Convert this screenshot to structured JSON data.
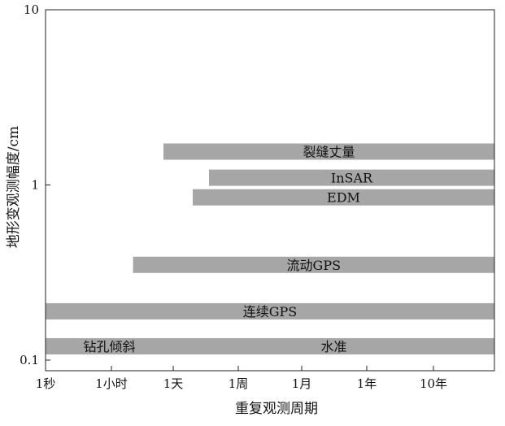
{
  "chart_data": {
    "type": "bar",
    "orientation": "horizontal-range",
    "xlabel": "重复观测周期",
    "ylabel": "地形变观测幅度/cm",
    "x_scale": "log",
    "y_scale": "log",
    "x_ticks": [
      "1秒",
      "1小时",
      "1天",
      "1周",
      "1月",
      "1年",
      "10年"
    ],
    "y_ticks": [
      "0.1",
      "1",
      "10"
    ],
    "ylim": [
      0.1,
      10
    ],
    "grid": false,
    "bar_color": "#a6a6a6",
    "series": [
      {
        "label": "裂缝丈量",
        "value": 1.55,
        "x_start": "1天",
        "x_start_offset": -0.15,
        "x_end": "right-edge"
      },
      {
        "label": "InSAR",
        "value": 1.1,
        "x_start": "1天",
        "x_start_offset": 0.55,
        "x_end": "right-edge"
      },
      {
        "label": "EDM",
        "value": 0.85,
        "x_start": "1天",
        "x_start_offset": 0.3,
        "x_end": "right-edge"
      },
      {
        "label": "流动GPS",
        "value": 0.35,
        "x_start": "1小时",
        "x_start_offset": 0.35,
        "x_end": "right-edge"
      },
      {
        "label": "连续GPS",
        "value": 0.19,
        "x_start": "left-edge",
        "x_end": "right-edge"
      },
      {
        "label": "钻孔倾斜",
        "value": 0.12,
        "x_start": "left-edge",
        "x_end": "1天",
        "label_only": false
      },
      {
        "label": "水准",
        "value": 0.12,
        "x_start": "1天",
        "x_end": "right-edge"
      }
    ]
  }
}
